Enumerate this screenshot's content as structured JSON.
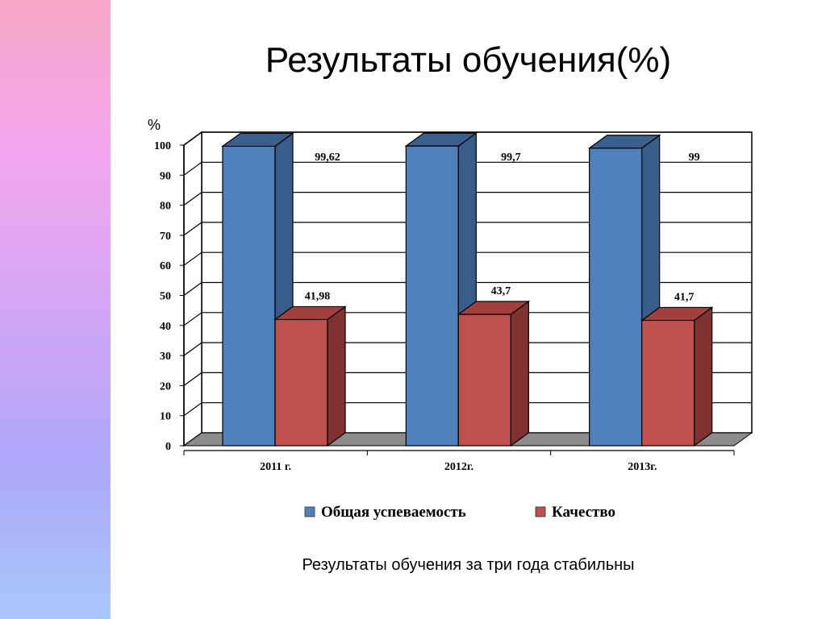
{
  "slide": {
    "title": "Результаты обучения(%)",
    "caption": "Результаты обучения за три года стабильны"
  },
  "colors": {
    "series1": "#4f81bd",
    "series1_side": "#385d8a",
    "series1_top": "#3b5f8f",
    "series2": "#c0504d",
    "series2_side": "#7f3230",
    "series2_top": "#a33f3c",
    "floor": "#8c8c8c"
  },
  "chart_data": {
    "type": "bar",
    "title": "",
    "xlabel": "",
    "ylabel": "%",
    "ylim": [
      0,
      100
    ],
    "yticks": [
      "0",
      "10",
      "20",
      "30",
      "40",
      "50",
      "60",
      "70",
      "80",
      "90",
      "100"
    ],
    "grid": true,
    "legend_position": "bottom",
    "categories": [
      "2011 г.",
      "2012г.",
      "2013г."
    ],
    "series": [
      {
        "name": "Общая успеваемость",
        "values": [
          99.62,
          99.7,
          99
        ],
        "labels": [
          "99,62",
          "99,7",
          "99"
        ]
      },
      {
        "name": "Качество",
        "values": [
          41.98,
          43.7,
          41.7
        ],
        "labels": [
          "41,98",
          "43,7",
          "41,7"
        ]
      }
    ]
  }
}
